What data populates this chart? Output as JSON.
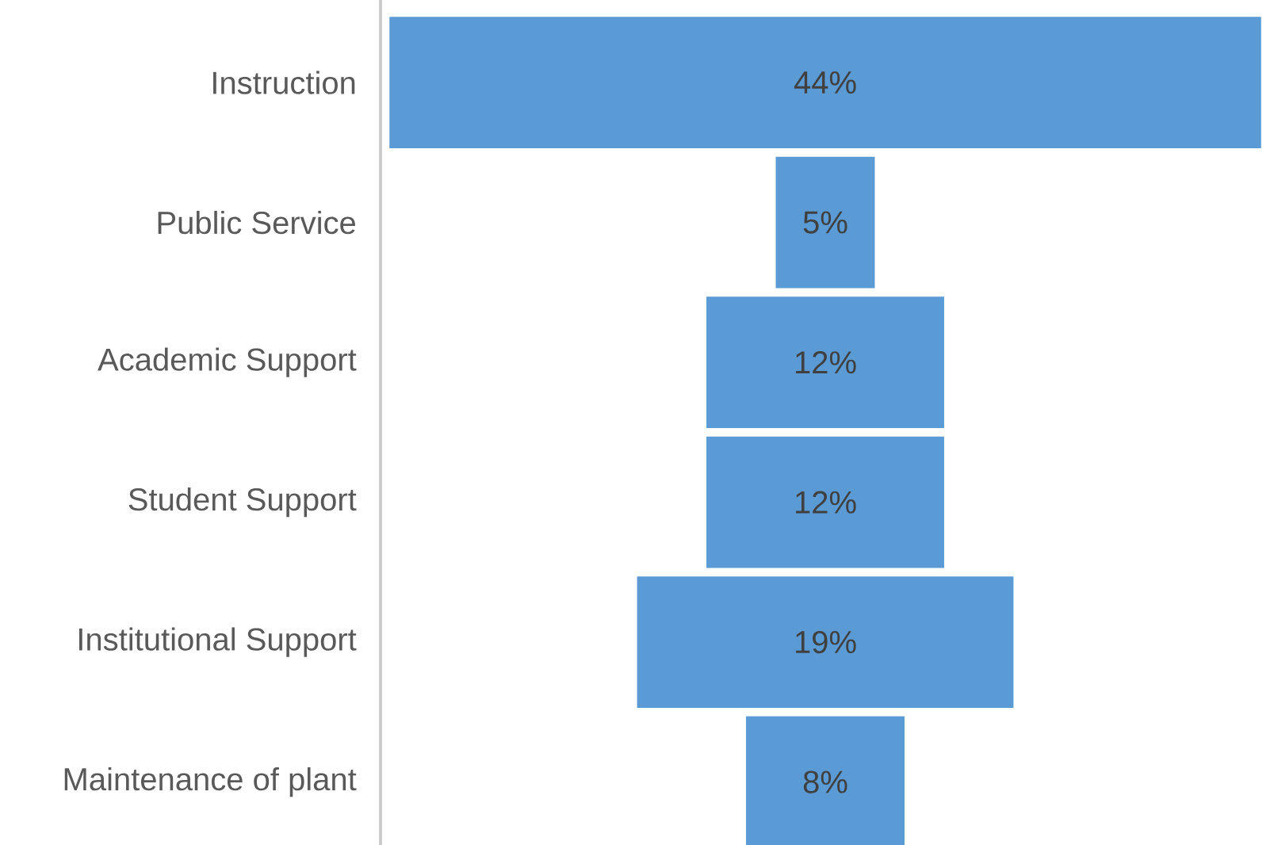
{
  "chart_data": {
    "type": "other",
    "categories": [
      "Instruction",
      "Public Service",
      "Academic Support",
      "Student Support",
      "Institutional Support",
      "Maintenance of plant"
    ],
    "values": [
      44,
      5,
      12,
      12,
      19,
      8
    ],
    "value_labels": [
      "44%",
      "5%",
      "12%",
      "12%",
      "19%",
      "8%"
    ],
    "color": "#5b9bd5"
  }
}
